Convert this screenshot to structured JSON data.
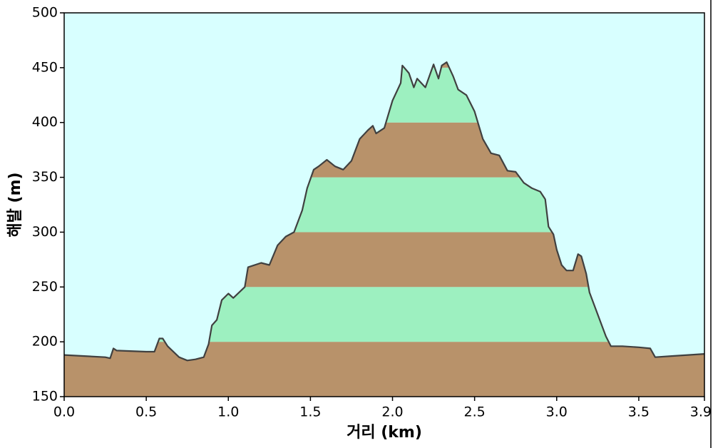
{
  "chart_data": {
    "type": "area",
    "xlabel": "거리   (km)",
    "ylabel": "해발 (m)",
    "xlim": [
      0,
      3.9
    ],
    "ylim": [
      150,
      500
    ],
    "xticks": [
      {
        "value": 0,
        "label": "0.0"
      },
      0.5,
      {
        "value": 1,
        "label": "1.0"
      },
      1.5,
      {
        "value": 2,
        "label": "2.0"
      },
      2.5,
      {
        "value": 3,
        "label": "3.0"
      },
      3.5,
      3.9
    ],
    "yticks": [
      150,
      200,
      250,
      300,
      350,
      400,
      450,
      500
    ],
    "background": "#d8ffff",
    "band_colors": [
      "#b8926a",
      "#9df0c0"
    ],
    "line_color": "#404040",
    "x": [
      0,
      0.25,
      0.28,
      0.3,
      0.32,
      0.5,
      0.55,
      0.58,
      0.6,
      0.63,
      0.7,
      0.75,
      0.8,
      0.85,
      0.88,
      0.9,
      0.93,
      0.96,
      1.0,
      1.03,
      1.1,
      1.12,
      1.2,
      1.25,
      1.3,
      1.35,
      1.4,
      1.45,
      1.48,
      1.52,
      1.55,
      1.6,
      1.65,
      1.7,
      1.75,
      1.8,
      1.85,
      1.88,
      1.9,
      1.95,
      2.0,
      2.05,
      2.06,
      2.1,
      2.13,
      2.15,
      2.2,
      2.25,
      2.28,
      2.3,
      2.33,
      2.37,
      2.4,
      2.45,
      2.5,
      2.55,
      2.6,
      2.65,
      2.7,
      2.75,
      2.8,
      2.85,
      2.9,
      2.93,
      2.95,
      2.98,
      3.0,
      3.03,
      3.06,
      3.1,
      3.13,
      3.15,
      3.18,
      3.2,
      3.25,
      3.3,
      3.33,
      3.4,
      3.5,
      3.57,
      3.6,
      3.7,
      3.8,
      3.9
    ],
    "values": [
      188,
      186,
      185,
      194,
      192,
      191,
      191,
      203,
      203,
      196,
      186,
      183,
      184,
      186,
      198,
      215,
      220,
      238,
      244,
      240,
      250,
      268,
      272,
      270,
      288,
      296,
      300,
      320,
      340,
      357,
      360,
      366,
      360,
      357,
      365,
      385,
      393,
      397,
      390,
      395,
      420,
      436,
      452,
      445,
      432,
      440,
      432,
      453,
      440,
      452,
      455,
      442,
      430,
      425,
      410,
      385,
      372,
      370,
      356,
      355,
      345,
      340,
      337,
      330,
      305,
      298,
      284,
      270,
      265,
      265,
      280,
      278,
      262,
      245,
      225,
      205,
      196,
      196,
      195,
      194,
      186,
      187,
      188,
      189
    ]
  }
}
